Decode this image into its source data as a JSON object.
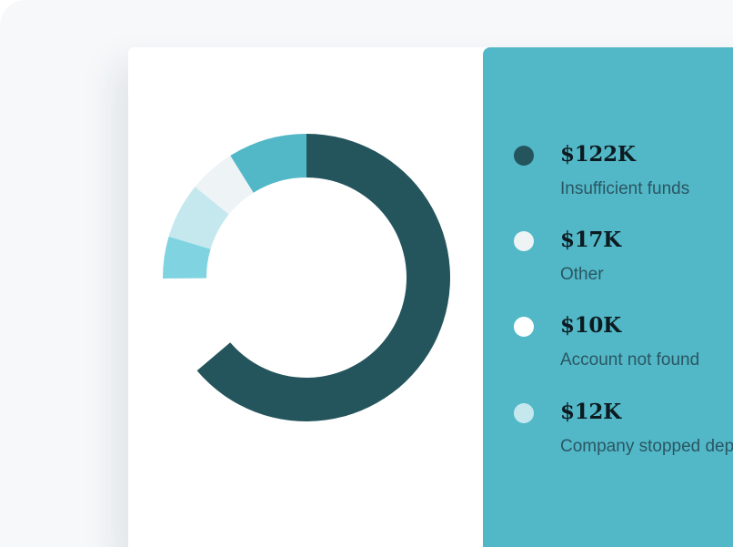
{
  "colors": {
    "panel_bg": "#52b8c8",
    "card_bg": "#ffffff",
    "backdrop": "#f6f8fa"
  },
  "chart_data": {
    "type": "pie",
    "variant": "donut",
    "title": "",
    "currency_unit": "USD",
    "start_angle_deg": 0,
    "total_slots": 200,
    "gap_after_last_deg": 40,
    "slices": [
      {
        "value": 122,
        "label": "$122K",
        "name": "Insufficient funds",
        "color": "#24555c",
        "dot_color": "#24555c"
      },
      {
        "value": 17,
        "label": "$17K",
        "name": "Other",
        "color": "#52b8c8",
        "dot_color": "#eef3f5"
      },
      {
        "value": 10,
        "label": "$10K",
        "name": "Account not found",
        "color": "#eef3f5",
        "dot_color": "#ffffff"
      },
      {
        "value": 12,
        "label": "$12K",
        "name": "Company stopped deposit",
        "color": "#c4e8ee",
        "dot_color": "#c4e8ee"
      }
    ],
    "extra_segment": {
      "value": 9,
      "color": "#80d4e1"
    }
  },
  "legend": {
    "items": [
      {
        "value_label": "$122K",
        "name": "Insufficient funds"
      },
      {
        "value_label": "$17K",
        "name": "Other"
      },
      {
        "value_label": "$10K",
        "name": "Account not found"
      },
      {
        "value_label": "$12K",
        "name": "Company stopped deposit"
      }
    ]
  }
}
